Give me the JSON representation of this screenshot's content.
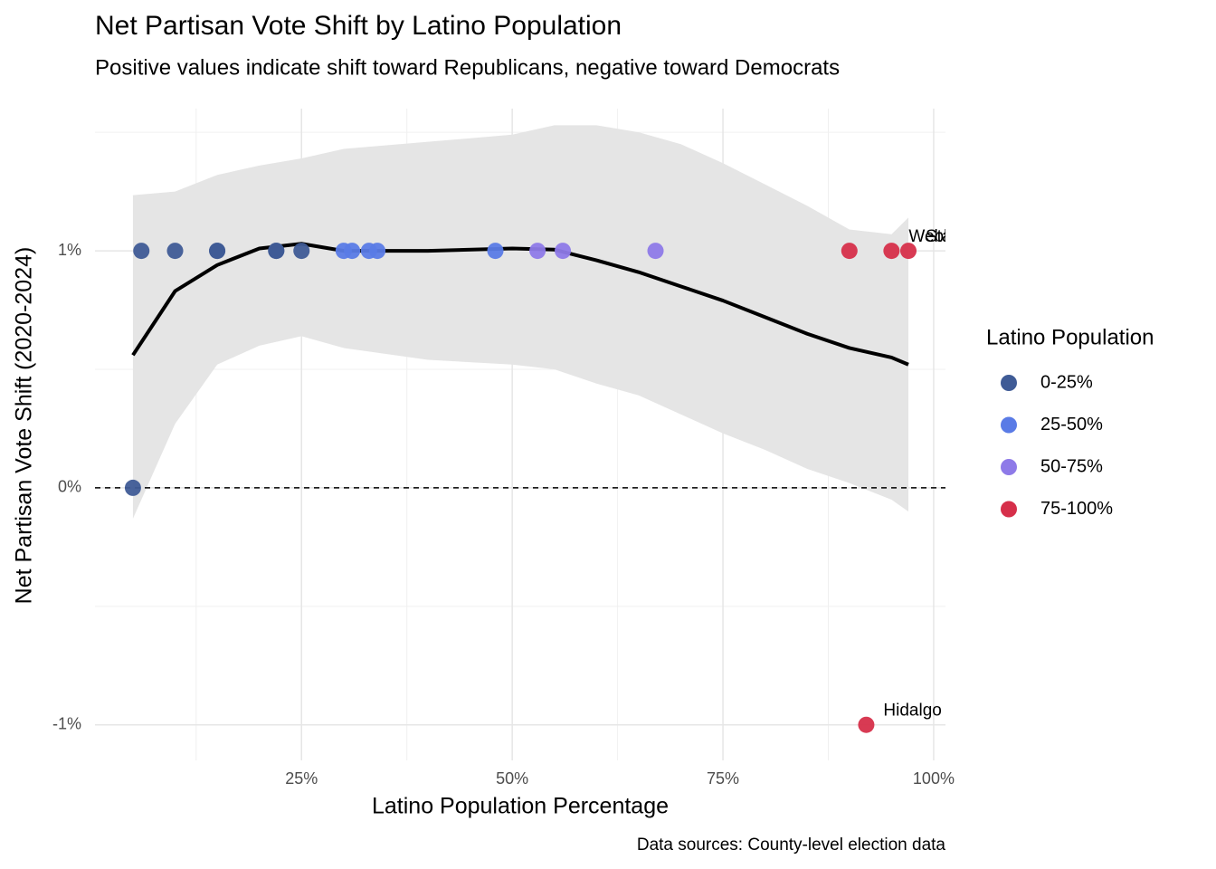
{
  "chart_data": {
    "type": "scatter",
    "title": "Net Partisan Vote Shift by Latino Population",
    "subtitle": "Positive values indicate shift toward Republicans, negative toward Democrats",
    "x_label": "Latino Population Percentage",
    "y_label": "Net Partisan Vote Shift (2020-2024)",
    "caption": "Data sources: County-level election data",
    "legend_title": "Latino Population",
    "xlim": [
      0.5,
      101.4
    ],
    "ylim": [
      -1.15,
      1.6
    ],
    "xticks": [
      {
        "value": 25,
        "label": "25%"
      },
      {
        "value": 50,
        "label": "50%"
      },
      {
        "value": 75,
        "label": "75%"
      },
      {
        "value": 100,
        "label": "100%"
      }
    ],
    "yticks": [
      {
        "value": -1,
        "label": "-1%"
      },
      {
        "value": 0,
        "label": "0%"
      },
      {
        "value": 1,
        "label": "1%"
      }
    ],
    "xminorticks": [
      12.5,
      37.5,
      62.5,
      87.5
    ],
    "yminorticks": [
      -0.5,
      0.5,
      1.5
    ],
    "grid": true,
    "hline": 0,
    "series": [
      {
        "name": "0-25%",
        "color": "#3f5b96",
        "x": [
          5,
          6,
          10,
          15,
          15,
          22,
          22,
          25
        ],
        "values": [
          0,
          1,
          1,
          1,
          1,
          1,
          1,
          1
        ]
      },
      {
        "name": "25-50%",
        "color": "#5a7be6",
        "x": [
          30,
          31,
          33,
          34,
          48
        ],
        "values": [
          1,
          1,
          1,
          1,
          1
        ]
      },
      {
        "name": "50-75%",
        "color": "#8e7ae8",
        "x": [
          53,
          56,
          67
        ],
        "values": [
          1,
          1,
          1
        ]
      },
      {
        "name": "75-100%",
        "color": "#d62f4a",
        "x": [
          90,
          92,
          95,
          97
        ],
        "values": [
          1,
          -1,
          1,
          1
        ]
      }
    ],
    "annotations": [
      {
        "text": "Hidalgo",
        "x": 92,
        "y": -1
      },
      {
        "text": "Webb",
        "x": 95,
        "y": 1
      },
      {
        "text": "Starr",
        "x": 97,
        "y": 1
      }
    ],
    "smooth": {
      "color": "#000000",
      "band_color": "#e5e5e5",
      "x": [
        5,
        10,
        15,
        20,
        25,
        30,
        40,
        50,
        55,
        60,
        65,
        70,
        75,
        80,
        85,
        90,
        95,
        97
      ],
      "y": [
        0.56,
        0.83,
        0.94,
        1.01,
        1.03,
        1.0,
        1.0,
        1.01,
        1.005,
        0.96,
        0.91,
        0.85,
        0.79,
        0.72,
        0.65,
        0.59,
        0.55,
        0.52
      ],
      "upper": [
        1.235,
        1.25,
        1.32,
        1.36,
        1.39,
        1.43,
        1.46,
        1.49,
        1.53,
        1.53,
        1.5,
        1.45,
        1.37,
        1.28,
        1.19,
        1.09,
        1.07,
        1.14
      ],
      "lower": [
        -0.13,
        0.27,
        0.52,
        0.6,
        0.64,
        0.59,
        0.54,
        0.52,
        0.5,
        0.44,
        0.39,
        0.31,
        0.23,
        0.16,
        0.08,
        0.02,
        -0.05,
        -0.1
      ]
    }
  }
}
